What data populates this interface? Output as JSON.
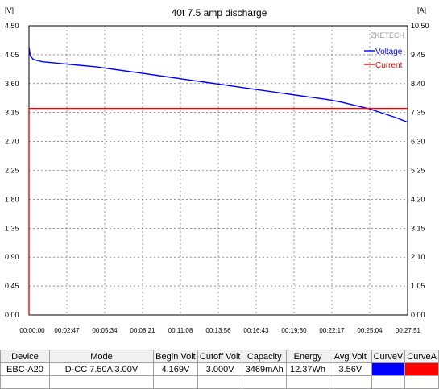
{
  "chart_data": {
    "type": "line",
    "title": "40t 7.5 amp discharge",
    "left_unit": "[V]",
    "right_unit": "[A]",
    "watermark": "ZKETECH",
    "y_left_ticks": [
      "4.50",
      "4.05",
      "3.60",
      "3.15",
      "2.70",
      "2.25",
      "1.80",
      "1.35",
      "0.90",
      "0.45",
      "0.00"
    ],
    "y_right_ticks": [
      "10.50",
      "9.45",
      "8.40",
      "7.35",
      "6.30",
      "5.25",
      "4.20",
      "3.15",
      "2.10",
      "1.05",
      "0.00"
    ],
    "x_ticks": [
      "00:00:00",
      "00:02:47",
      "00:05:34",
      "00:08:21",
      "00:11:08",
      "00:13:56",
      "00:16:43",
      "00:19:30",
      "00:22:17",
      "00:25:04",
      "00:27:51"
    ],
    "ylim_left": [
      0,
      4.5
    ],
    "ylim_right": [
      0,
      10.5
    ],
    "x_end_min": 27.85,
    "grid": true,
    "legend_position": "top-right",
    "series": [
      {
        "name": "Voltage",
        "axis": "left",
        "color": "#0000ff",
        "x_min": [
          0,
          0.1,
          0.3,
          0.6,
          1.0,
          2.0,
          3.0,
          4.0,
          5.0,
          6.0,
          8.0,
          10.0,
          12.0,
          14.0,
          16.0,
          18.0,
          20.0,
          22.0,
          23.0,
          24.0,
          25.0,
          26.0,
          27.0,
          27.85
        ],
        "y": [
          4.169,
          4.03,
          3.98,
          3.96,
          3.94,
          3.92,
          3.9,
          3.88,
          3.86,
          3.83,
          3.77,
          3.71,
          3.65,
          3.59,
          3.53,
          3.47,
          3.41,
          3.35,
          3.31,
          3.26,
          3.21,
          3.14,
          3.07,
          3.0
        ]
      },
      {
        "name": "Current",
        "axis": "right",
        "color": "#ff0000",
        "x_min": [
          0,
          0,
          0.02,
          27.85
        ],
        "y": [
          0,
          7.5,
          7.5,
          7.5
        ]
      }
    ]
  },
  "table": {
    "headers": [
      "Device",
      "Mode",
      "Begin Volt",
      "Cutoff Volt",
      "Capacity",
      "Energy",
      "Avg Volt",
      "CurveV",
      "CurveA"
    ],
    "row": {
      "device": "EBC-A20",
      "mode": "D-CC  7.50A  3.00V",
      "begin_volt": "4.169V",
      "cutoff_volt": "3.000V",
      "capacity": "3469mAh",
      "energy": "12.37Wh",
      "avg_volt": "3.56V",
      "curve_v_color": "#0000ff",
      "curve_a_color": "#ff0000"
    }
  }
}
